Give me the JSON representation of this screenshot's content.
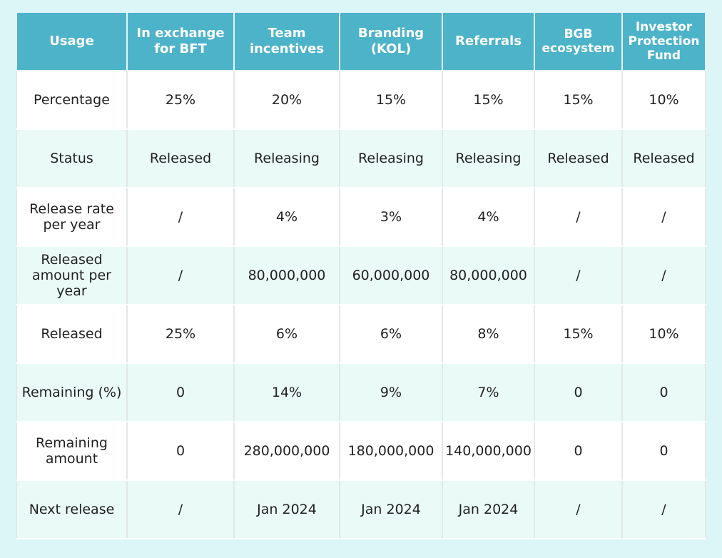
{
  "headers": [
    "Usage",
    "In exchange for BFT",
    "Team incentives",
    "Branding (KOL)",
    "Referrals",
    "BGB ecosystem",
    "Investor Protection Fund"
  ],
  "rows": [
    {
      "label": "Percentage",
      "cells": [
        "25%",
        "20%",
        "15%",
        "15%",
        "15%",
        "10%"
      ]
    },
    {
      "label": "Status",
      "cells": [
        "Released",
        "Releasing",
        "Releasing",
        "Releasing",
        "Released",
        "Released"
      ]
    },
    {
      "label": "Release rate per year",
      "cells": [
        "/",
        "4%",
        "3%",
        "4%",
        "/",
        "/"
      ]
    },
    {
      "label": "Released amount per year",
      "cells": [
        "/",
        "80,000,000",
        "60,000,000",
        "80,000,000",
        "/",
        "/"
      ]
    },
    {
      "label": "Released",
      "cells": [
        "25%",
        "6%",
        "6%",
        "8%",
        "15%",
        "10%"
      ]
    },
    {
      "label": "Remaining (%)",
      "cells": [
        "0",
        "14%",
        "9%",
        "7%",
        "0",
        "0"
      ]
    },
    {
      "label": "Remaining amount",
      "cells": [
        "0",
        "280,000,000",
        "180,000,000",
        "140,000,000",
        "0",
        "0"
      ]
    },
    {
      "label": "Next release",
      "cells": [
        "/",
        "Jan 2024",
        "Jan 2024",
        "Jan 2024",
        "/",
        "/"
      ]
    }
  ]
}
